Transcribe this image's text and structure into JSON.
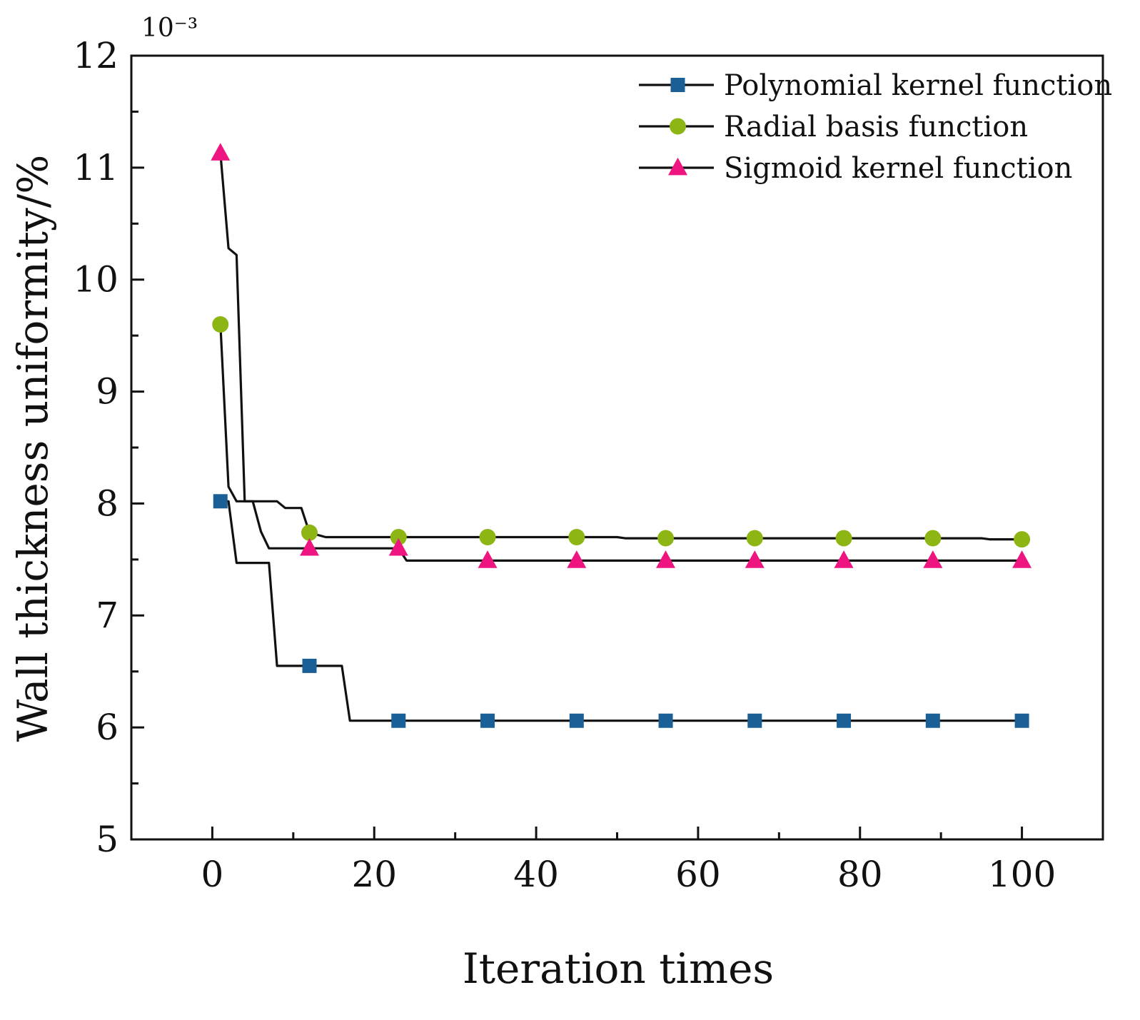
{
  "chart_data": {
    "type": "line",
    "title": "",
    "xlabel": "Iteration times",
    "ylabel": "Wall thickness uniformity/%",
    "y_scale_label": "10⁻³",
    "xlim": [
      -10,
      110
    ],
    "ylim": [
      5,
      12
    ],
    "x_ticks": [
      0,
      20,
      40,
      60,
      80,
      100
    ],
    "y_ticks": [
      5,
      6,
      7,
      8,
      9,
      10,
      11,
      12
    ],
    "x_tick_labels": [
      "0",
      "20",
      "40",
      "60",
      "80",
      "100"
    ],
    "y_tick_labels": [
      "5",
      "6",
      "7",
      "8",
      "9",
      "10",
      "11",
      "12"
    ],
    "legend_position": "top-right",
    "grid": false,
    "line_color": "#111111",
    "series": [
      {
        "name": "Polynomial kernel function",
        "marker": "square",
        "color": "#1a5f96",
        "line": [
          [
            1,
            8.02
          ],
          [
            2,
            8.02
          ],
          [
            3,
            7.47
          ],
          [
            7,
            7.47
          ],
          [
            8,
            6.55
          ],
          [
            16,
            6.55
          ],
          [
            17,
            6.06
          ],
          [
            100,
            6.06
          ]
        ],
        "markers": [
          [
            1,
            8.02
          ],
          [
            12,
            6.55
          ],
          [
            23,
            6.06
          ],
          [
            34,
            6.06
          ],
          [
            45,
            6.06
          ],
          [
            56,
            6.06
          ],
          [
            67,
            6.06
          ],
          [
            78,
            6.06
          ],
          [
            89,
            6.06
          ],
          [
            100,
            6.06
          ]
        ]
      },
      {
        "name": "Radial basis function",
        "marker": "circle",
        "color": "#8db514",
        "line": [
          [
            1,
            9.6
          ],
          [
            2,
            8.15
          ],
          [
            3,
            8.02
          ],
          [
            8,
            8.02
          ],
          [
            9,
            7.96
          ],
          [
            11,
            7.96
          ],
          [
            12,
            7.74
          ],
          [
            14,
            7.7
          ],
          [
            50,
            7.7
          ],
          [
            51,
            7.69
          ],
          [
            95,
            7.69
          ],
          [
            96,
            7.68
          ],
          [
            100,
            7.68
          ]
        ],
        "markers": [
          [
            1,
            9.6
          ],
          [
            12,
            7.74
          ],
          [
            23,
            7.7
          ],
          [
            34,
            7.7
          ],
          [
            45,
            7.7
          ],
          [
            56,
            7.69
          ],
          [
            67,
            7.69
          ],
          [
            78,
            7.69
          ],
          [
            89,
            7.69
          ],
          [
            100,
            7.68
          ]
        ]
      },
      {
        "name": "Sigmoid kernel function",
        "marker": "triangle",
        "color": "#ee1580",
        "line": [
          [
            1,
            11.13
          ],
          [
            2,
            10.28
          ],
          [
            3,
            10.22
          ],
          [
            4,
            8.02
          ],
          [
            5,
            8.02
          ],
          [
            6,
            7.75
          ],
          [
            7,
            7.6
          ],
          [
            23,
            7.6
          ],
          [
            24,
            7.49
          ],
          [
            100,
            7.49
          ]
        ],
        "markers": [
          [
            1,
            11.13
          ],
          [
            12,
            7.6
          ],
          [
            23,
            7.6
          ],
          [
            34,
            7.49
          ],
          [
            45,
            7.49
          ],
          [
            56,
            7.49
          ],
          [
            67,
            7.49
          ],
          [
            78,
            7.49
          ],
          [
            89,
            7.49
          ],
          [
            100,
            7.49
          ]
        ]
      }
    ]
  }
}
